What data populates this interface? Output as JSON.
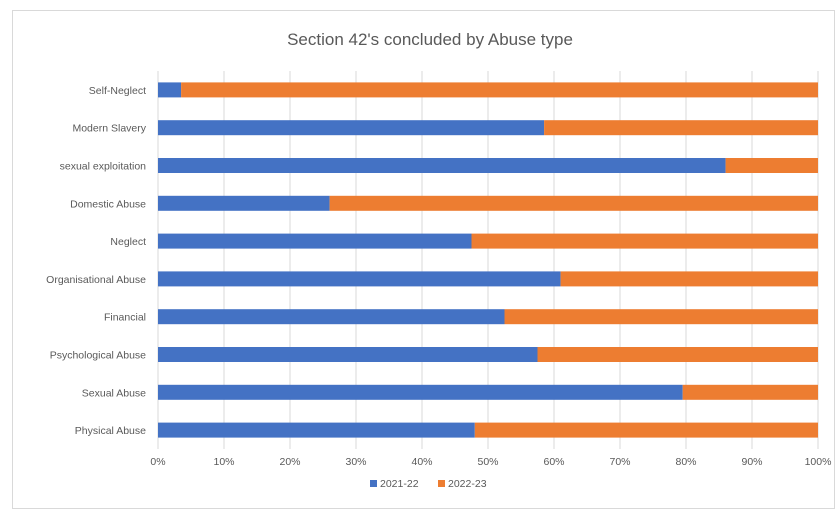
{
  "chart_data": {
    "type": "bar",
    "orientation": "horizontal",
    "stacked": "percent",
    "title": "Section 42's concluded by Abuse type",
    "xlabel": "",
    "ylabel": "",
    "xlim": [
      0,
      100
    ],
    "x_ticks": [
      "0%",
      "10%",
      "20%",
      "30%",
      "40%",
      "50%",
      "60%",
      "70%",
      "80%",
      "90%",
      "100%"
    ],
    "grid": true,
    "legend_position": "bottom",
    "categories": [
      "Self-Neglect",
      "Modern Slavery",
      "sexual exploitation",
      "Domestic Abuse",
      "Neglect",
      "Organisational Abuse",
      "Financial",
      "Psychological Abuse",
      "Sexual Abuse",
      "Physical Abuse"
    ],
    "series": [
      {
        "name": "2021-22",
        "color": "#4472c4",
        "values": [
          3.5,
          58.5,
          86,
          26,
          47.5,
          61,
          52.5,
          57.5,
          79.5,
          48
        ]
      },
      {
        "name": "2022-23",
        "color": "#ed7d31",
        "values": [
          96.5,
          41.5,
          14,
          74,
          52.5,
          39,
          47.5,
          42.5,
          20.5,
          52
        ]
      }
    ]
  }
}
